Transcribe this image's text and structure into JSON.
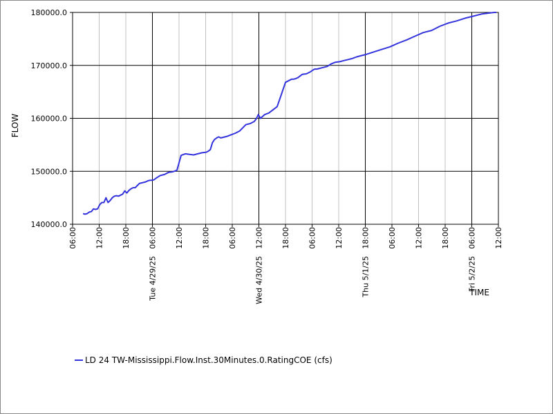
{
  "chart_data": {
    "type": "line",
    "title": "",
    "xlabel": "TIME",
    "ylabel": "FLOW",
    "ylim": [
      140000,
      180000
    ],
    "y_ticks": [
      "140000.0",
      "150000.0",
      "160000.0",
      "170000.0",
      "180000.0"
    ],
    "x_range_hours": [
      0,
      102
    ],
    "x_tick_labels": [
      "06:00",
      "12:00",
      "18:00",
      "06:00",
      "12:00",
      "18:00",
      "06:00",
      "12:00",
      "18:00",
      "06:00",
      "12:00",
      "18:00",
      "06:00",
      "12:00",
      "18:00",
      "06:00",
      "12:00"
    ],
    "x_day_labels": [
      "Tue 4/29/25",
      "Wed 4/30/25",
      "Thu 5/1/25",
      "Fri 5/2/25"
    ],
    "series": [
      {
        "name": "LD 24 TW-Mississippi.Flow.Inst.30Minutes.0.RatingCOE (cfs)",
        "color": "#3333dd",
        "x": [
          2.5,
          3.0,
          3.5,
          4.0,
          4.5,
          5.0,
          5.5,
          6.0,
          6.5,
          7.0,
          7.5,
          8.0,
          8.5,
          9.0,
          9.5,
          10.0,
          10.5,
          11.0,
          11.5,
          12.0,
          12.5,
          13.0,
          13.5,
          14.0,
          14.5,
          15.0,
          15.5,
          16.0,
          16.5,
          17.0,
          17.5,
          18.0,
          18.5,
          19.0,
          19.5,
          20.0,
          21.0,
          22.0,
          23.0,
          24.0,
          25.0,
          26.0,
          27.0,
          28.0,
          29.0,
          30.0,
          31.0,
          32.0,
          32.5,
          33.0,
          33.5,
          34.0,
          34.5,
          35.0,
          35.5,
          36.0,
          37.0,
          38.0,
          39.0,
          40.0,
          41.0,
          41.5,
          42.0,
          42.5,
          43.0,
          43.5,
          44.0,
          44.5,
          45.0,
          46.0,
          47.0,
          48.0,
          49.0,
          50.0,
          51.0,
          52.0,
          52.5,
          53.0,
          53.5,
          54.0,
          55.0,
          56.0,
          56.5,
          57.0,
          57.5,
          58.0,
          58.5,
          59.0,
          60.0,
          61.0,
          62.0,
          63.0,
          64.0,
          65.0,
          66.0,
          67.0,
          68.0,
          69.0,
          70.0,
          72.0,
          74.0,
          76.0,
          78.0,
          80.0,
          82.0,
          84.0,
          86.0,
          88.0,
          90.0,
          92.0,
          94.0,
          96.0,
          98.0,
          100.0,
          101.0,
          101.5
        ],
        "y": [
          142000,
          141900,
          142000,
          142300,
          142400,
          142900,
          142800,
          142900,
          143700,
          144100,
          144100,
          145000,
          144100,
          144500,
          145000,
          145300,
          145400,
          145300,
          145500,
          145700,
          146300,
          145900,
          146400,
          146700,
          146900,
          146900,
          147300,
          147700,
          147800,
          147900,
          148000,
          148200,
          148300,
          148300,
          148400,
          148700,
          149200,
          149400,
          149800,
          149900,
          150200,
          153000,
          153300,
          153200,
          153100,
          153300,
          153500,
          153600,
          153800,
          154100,
          155400,
          156000,
          156300,
          156500,
          156300,
          156400,
          156600,
          156900,
          157200,
          157600,
          158400,
          158800,
          158900,
          159000,
          159200,
          159400,
          159900,
          160700,
          160000,
          160700,
          161000,
          161600,
          162200,
          164500,
          166800,
          167200,
          167400,
          167400,
          167500,
          167700,
          168300,
          168400,
          168600,
          168800,
          169100,
          169300,
          169300,
          169400,
          169600,
          169800,
          170300,
          170600,
          170700,
          170900,
          171100,
          171300,
          171600,
          171800,
          172000,
          172500,
          173000,
          173500,
          174200,
          174800,
          175500,
          176200,
          176600,
          177400,
          178000,
          178400,
          178900,
          179300,
          179700,
          179900,
          180000,
          180000
        ]
      }
    ],
    "grid": true,
    "legend_position": "bottom-left"
  }
}
